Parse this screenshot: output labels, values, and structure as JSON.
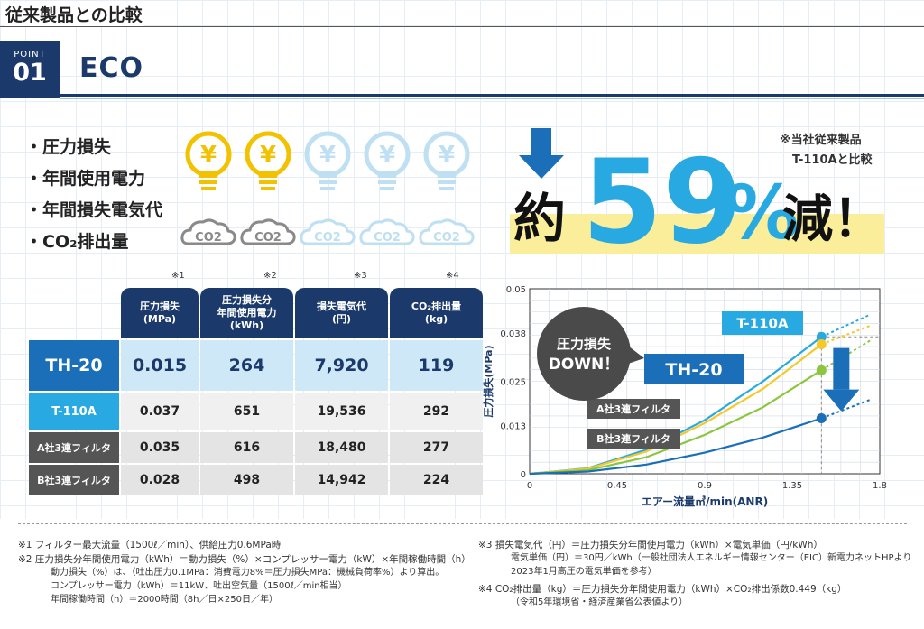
{
  "header": {
    "title": "従来製品との比較"
  },
  "point": {
    "label": "POINT",
    "number": "01",
    "title": "ECO"
  },
  "metrics": [
    "・圧力損失",
    "・年間使用電力",
    "・年間損失電気代",
    "・CO₂排出量"
  ],
  "icons": {
    "bulb_glyph": "¥",
    "cloud_label": "CO2",
    "bulb_active_color": "#f2c200",
    "bulb_inactive_color": "#bfe0f2",
    "active_count": 2,
    "total_count": 5
  },
  "reduction": {
    "prefix": "約",
    "number": "59",
    "unit": "%",
    "suffix": "減！",
    "note_line1": "※当社従来製品",
    "note_line2": "T-110Aと比較"
  },
  "table": {
    "note_marks": [
      "※1",
      "※2",
      "※3",
      "※4"
    ],
    "headers": [
      [
        "圧力損失",
        "(MPa)",
        ""
      ],
      [
        "圧力損失分",
        "年間使用電力",
        "(kWh)"
      ],
      [
        "損失電気代",
        "(円)",
        ""
      ],
      [
        "CO₂排出量",
        "(kg)",
        ""
      ]
    ],
    "rows": [
      {
        "name": "TH-20",
        "values": [
          "0.015",
          "264",
          "7,920",
          "119"
        ]
      },
      {
        "name": "T-110A",
        "values": [
          "0.037",
          "651",
          "19,536",
          "292"
        ]
      },
      {
        "name": "A社3連フィルタ",
        "values": [
          "0.035",
          "616",
          "18,480",
          "277"
        ]
      },
      {
        "name": "B社3連フィルタ",
        "values": [
          "0.028",
          "498",
          "14,942",
          "224"
        ]
      }
    ]
  },
  "chart_data": {
    "type": "line",
    "xlabel": "エアー流量㎥/min(ANR)",
    "ylabel": "圧力損失(MPa)",
    "xlim": [
      0,
      1.8
    ],
    "ylim": [
      0,
      0.05
    ],
    "x_ticks": [
      "0",
      "0.45",
      "0.9",
      "1.35",
      "1.8"
    ],
    "y_ticks": [
      "0",
      "0.013",
      "0.025",
      "0.038",
      "0.05"
    ],
    "grid": true,
    "bubble": [
      "圧力損失",
      "DOWN！"
    ],
    "series": [
      {
        "name": "T-110A",
        "color": "#29a9e1",
        "x": [
          0,
          0.3,
          0.6,
          0.9,
          1.2,
          1.5
        ],
        "y": [
          0,
          0.0015,
          0.0065,
          0.0145,
          0.025,
          0.037
        ],
        "ext_x": [
          1.5,
          1.75
        ],
        "ext_y": [
          0.037,
          0.043
        ]
      },
      {
        "name": "A社3連フィルタ",
        "color": "#f6c82a",
        "x": [
          0,
          0.3,
          0.6,
          0.9,
          1.2,
          1.5
        ],
        "y": [
          0,
          0.0014,
          0.006,
          0.0137,
          0.023,
          0.035
        ],
        "ext_x": [
          1.5,
          1.75
        ],
        "ext_y": [
          0.035,
          0.04
        ]
      },
      {
        "name": "B社3連フィルタ",
        "color": "#8cc63f",
        "x": [
          0,
          0.3,
          0.6,
          0.9,
          1.2,
          1.5
        ],
        "y": [
          0,
          0.001,
          0.0045,
          0.0105,
          0.018,
          0.028
        ],
        "ext_x": [
          1.5,
          1.75
        ],
        "ext_y": [
          0.028,
          0.036
        ]
      },
      {
        "name": "TH-20",
        "color": "#1b6fb8",
        "x": [
          0,
          0.3,
          0.6,
          0.9,
          1.2,
          1.5
        ],
        "y": [
          0,
          0.0006,
          0.0025,
          0.0057,
          0.0098,
          0.015
        ],
        "ext_x": [
          1.5,
          1.75
        ],
        "ext_y": [
          0.015,
          0.02
        ]
      }
    ]
  },
  "footnotes": {
    "left": [
      "※1  フィルター最大流量（1500ℓ／min）、供給圧力0.6MPa時",
      "※2  圧力損失分年間使用電力（kWh）＝動力損失（%）×コンプレッサー電力（kW）×年間稼働時間（h）",
      "動力損失（%）は、（吐出圧力0.1MPa：消費電力8%＝圧力損失MPa：機械負荷率%）より算出。",
      "コンプレッサー電力（kWh）＝11kW、吐出空気量（1500ℓ／min相当）",
      "年間稼働時間（h）＝2000時間（8h／日×250日／年）"
    ],
    "right": [
      "※3  損失電気代（円）＝圧力損失分年間使用電力（kWh）×電気単価（円/kWh）",
      "電気単価（円）＝30円／kWh（一般社団法人エネルギー情報センター（EIC）新電力ネットHPより",
      "2023年1月高圧の電気単価を参考）",
      "※4  CO₂排出量（kg）＝圧力損失分年間使用電力（kWh）×CO₂排出係数0.449（kg）",
      "（令和5年環境省・経済産業省公表値より）"
    ]
  }
}
